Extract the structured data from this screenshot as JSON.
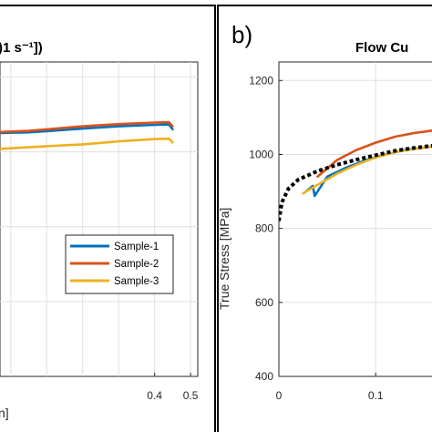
{
  "chart_data": [
    {
      "type": "line",
      "panel": "",
      "title": ")1 s⁻¹])",
      "xlabel": "n]",
      "ylabel": "",
      "xlim": [
        -0.03,
        0.52
      ],
      "ylim": [
        400,
        1240
      ],
      "x_ticks": [
        "0.4",
        "0.5"
      ],
      "grid": true,
      "legend_position": "center-right",
      "series": [
        {
          "name": "Sample-1",
          "color": "#0072BD",
          "points": [
            [
              -0.03,
              1050
            ],
            [
              0.05,
              1052
            ],
            [
              0.1,
              1055
            ],
            [
              0.2,
              1062
            ],
            [
              0.3,
              1068
            ],
            [
              0.4,
              1072
            ],
            [
              0.44,
              1073
            ],
            [
              0.45,
              1060
            ]
          ]
        },
        {
          "name": "Sample-2",
          "color": "#D95319",
          "points": [
            [
              -0.03,
              1053
            ],
            [
              0.05,
              1056
            ],
            [
              0.1,
              1060
            ],
            [
              0.2,
              1068
            ],
            [
              0.3,
              1074
            ],
            [
              0.4,
              1078
            ],
            [
              0.44,
              1079
            ],
            [
              0.45,
              1068
            ]
          ]
        },
        {
          "name": "Sample-3",
          "color": "#EDB120",
          "points": [
            [
              -0.03,
              1008
            ],
            [
              0.05,
              1012
            ],
            [
              0.1,
              1015
            ],
            [
              0.2,
              1020
            ],
            [
              0.3,
              1028
            ],
            [
              0.4,
              1034
            ],
            [
              0.44,
              1035
            ],
            [
              0.45,
              1025
            ]
          ]
        }
      ]
    },
    {
      "type": "line",
      "panel": "b)",
      "title": "Flow Cu",
      "xlabel": "",
      "ylabel": "True Stress [MPa]",
      "xlim": [
        0,
        0.16
      ],
      "ylim": [
        400,
        1250
      ],
      "x_ticks": [
        "0",
        "0.1"
      ],
      "y_ticks": [
        "400",
        "600",
        "800",
        "1000",
        "1200"
      ],
      "grid": true,
      "series": [
        {
          "name": "",
          "color": "#0072BD",
          "points": [
            [
              0.028,
              900
            ],
            [
              0.035,
              915
            ],
            [
              0.037,
              888
            ],
            [
              0.05,
              940
            ],
            [
              0.07,
              965
            ],
            [
              0.09,
              985
            ],
            [
              0.11,
              1000
            ],
            [
              0.13,
              1012
            ],
            [
              0.16,
              1022
            ]
          ]
        },
        {
          "name": "",
          "color": "#D95319",
          "points": [
            [
              0.04,
              940
            ],
            [
              0.06,
              985
            ],
            [
              0.08,
              1012
            ],
            [
              0.1,
              1032
            ],
            [
              0.12,
              1048
            ],
            [
              0.14,
              1058
            ],
            [
              0.16,
              1065
            ]
          ]
        },
        {
          "name": "",
          "color": "#EDB120",
          "points": [
            [
              0.025,
              895
            ],
            [
              0.04,
              918
            ],
            [
              0.06,
              948
            ],
            [
              0.08,
              972
            ],
            [
              0.1,
              992
            ],
            [
              0.12,
              1006
            ],
            [
              0.14,
              1015
            ],
            [
              0.16,
              1022
            ]
          ]
        },
        {
          "name": "",
          "color": "#000000",
          "dashed": true,
          "points": [
            [
              0,
              820
            ],
            [
              0.003,
              870
            ],
            [
              0.01,
              908
            ],
            [
              0.02,
              932
            ],
            [
              0.04,
              955
            ],
            [
              0.06,
              972
            ],
            [
              0.08,
              986
            ],
            [
              0.1,
              998
            ],
            [
              0.12,
              1010
            ],
            [
              0.14,
              1018
            ],
            [
              0.16,
              1024
            ]
          ]
        }
      ]
    }
  ]
}
